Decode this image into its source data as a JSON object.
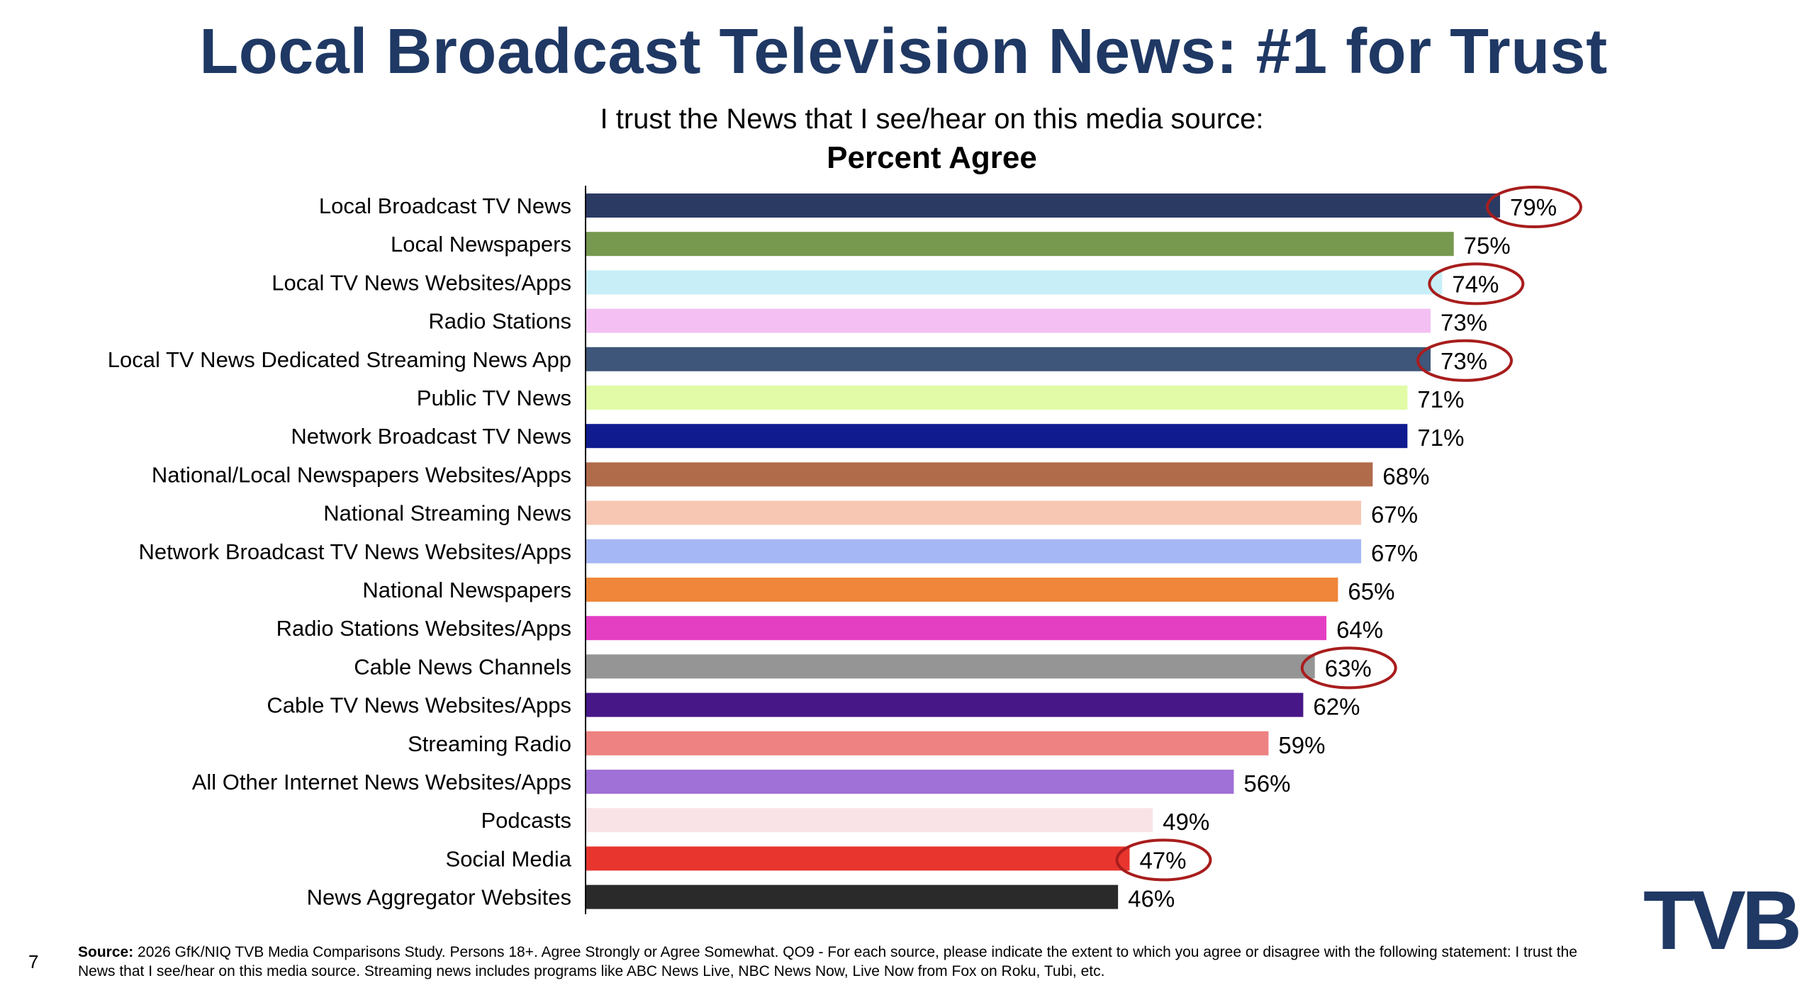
{
  "header": {
    "title": "Local Broadcast Television News: #1 for Trust",
    "subtitle": "I trust the News that I see/hear on this media source:",
    "subtitle_bold": "Percent Agree"
  },
  "footer": {
    "page_number": "7",
    "source_label": "Source:",
    "source_text": "2026 GfK/NIQ TVB Media Comparisons Study. Persons 18+. Agree Strongly or Agree Somewhat. QO9 - For each source, please indicate the extent to which you agree or disagree with the following statement: I trust the News that I see/hear on this media source. Streaming news includes programs like ABC News Live, NBC News Now, Live Now from Fox on Roku, Tubi, etc.",
    "logo_text": "TVB"
  },
  "chart_data": {
    "type": "bar",
    "orientation": "horizontal",
    "title": "Percent Agree",
    "xlim": [
      0,
      100
    ],
    "grid": false,
    "legend": "none",
    "categories": [
      "Local Broadcast TV News",
      "Local Newspapers",
      "Local TV News Websites/Apps",
      "Radio Stations",
      "Local TV News Dedicated Streaming News App",
      "Public TV News",
      "Network Broadcast TV News",
      "National/Local Newspapers Websites/Apps",
      "National Streaming News",
      "Network Broadcast TV News Websites/Apps",
      "National Newspapers",
      "Radio Stations Websites/Apps",
      "Cable News Channels",
      "Cable TV News Websites/Apps",
      "Streaming Radio",
      "All Other Internet News Websites/Apps",
      "Podcasts",
      "Social Media",
      "News Aggregator Websites"
    ],
    "values": [
      79,
      75,
      74,
      73,
      73,
      71,
      71,
      68,
      67,
      67,
      65,
      64,
      63,
      62,
      59,
      56,
      49,
      47,
      46
    ],
    "value_labels": [
      "79%",
      "75%",
      "74%",
      "73%",
      "73%",
      "71%",
      "71%",
      "68%",
      "67%",
      "67%",
      "65%",
      "64%",
      "63%",
      "62%",
      "59%",
      "56%",
      "49%",
      "47%",
      "46%"
    ],
    "colors": [
      "#2b3a63",
      "#76984f",
      "#c8eff8",
      "#f4c0f4",
      "#3e5679",
      "#e1fba6",
      "#0f1b8f",
      "#b06b4b",
      "#f7c7b3",
      "#a6b7f5",
      "#ef8639",
      "#e43ec3",
      "#959595",
      "#471788",
      "#ee8282",
      "#a071d6",
      "#fae3e7",
      "#e8352e",
      "#2a2a2a"
    ],
    "highlighted": [
      0,
      2,
      4,
      12,
      17
    ],
    "highlight_color": "#a81d1d"
  }
}
